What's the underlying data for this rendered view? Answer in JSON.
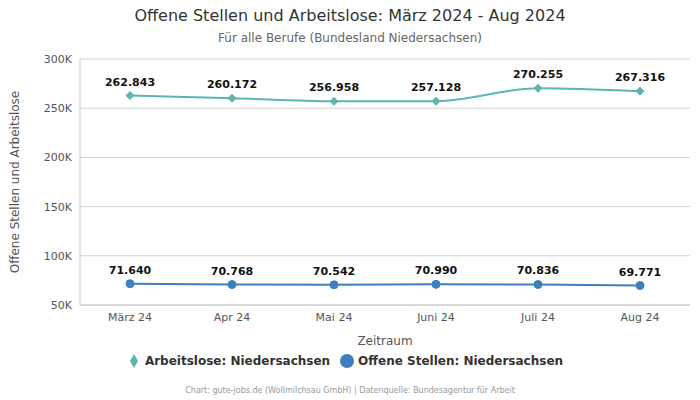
{
  "chart_data": {
    "type": "line",
    "title": "Offene Stellen und Arbeitslose: März 2024 - Aug 2024",
    "subtitle": "Für alle Berufe (Bundesland Niedersachsen)",
    "x_label": "Zeitraum",
    "y_label": "Offene Stellen und Arbeitslose",
    "annotations": [
      "Chart: gute-jobs.de (Wollmilchsau GmbH) | Datenquelle: Bundesagentur für Arbeit"
    ],
    "categories": [
      "März 24",
      "Apr 24",
      "Mai 24",
      "Juni 24",
      "Juli 24",
      "Aug 24"
    ],
    "series": [
      {
        "name": "Offene Stellen: Niedersachsen",
        "color": "#3d7fbf",
        "marker": "circle",
        "values": [
          71640,
          70768,
          70542,
          70990,
          70836,
          69771
        ],
        "value_labels": [
          "71.640",
          "70.768",
          "70.542",
          "70.990",
          "70.836",
          "69.771"
        ]
      },
      {
        "name": "Arbeitslose: Niedersachsen",
        "color": "#5bb5b0",
        "marker": "diamond",
        "values": [
          262843,
          260172,
          256958,
          257128,
          270255,
          267316
        ],
        "value_labels": [
          "262.843",
          "260.172",
          "256.958",
          "257.128",
          "270.255",
          "267.316"
        ]
      }
    ],
    "ylim": [
      50000,
      300000
    ],
    "yticks": [
      {
        "value": 50000,
        "label": "50K"
      },
      {
        "value": 100000,
        "label": "100K"
      },
      {
        "value": 150000,
        "label": "150K"
      },
      {
        "value": 200000,
        "label": "200K"
      },
      {
        "value": 250000,
        "label": "250K"
      },
      {
        "value": 300000,
        "label": "300K"
      }
    ],
    "grid": true,
    "legend": "bottom",
    "data_labels": true
  }
}
